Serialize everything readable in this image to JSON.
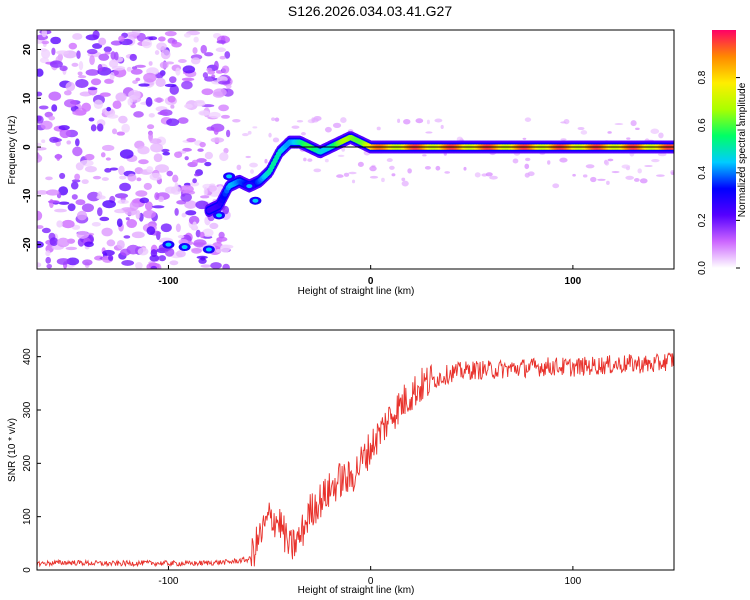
{
  "title": "S126.2026.034.03.41.G27",
  "chart_data": [
    {
      "type": "heatmap",
      "title": "S126.2026.034.03.41.G27",
      "xlabel": "Height of straight line (km)",
      "ylabel": "Frequency (Hz)",
      "xlim": [
        -165,
        150
      ],
      "ylim": [
        -25,
        24
      ],
      "xticks": [
        -100,
        0,
        100
      ],
      "yticks": [
        20,
        10,
        0,
        -10,
        -20
      ],
      "colorbar": {
        "label": "Normalized spectral amplitude",
        "range": [
          0,
          1
        ],
        "ticks": [
          0.0,
          0.2,
          0.4,
          0.6,
          0.8
        ],
        "colors": [
          "#ffffff",
          "#cc66ff",
          "#5500ff",
          "#0000ff",
          "#00ccff",
          "#00ff66",
          "#aaff00",
          "#ffee00",
          "#ff8800",
          "#ff0066"
        ]
      },
      "noise_region_x": [
        -165,
        -70
      ],
      "ridge_x": [
        -80,
        -75,
        -70,
        -65,
        -60,
        -55,
        -50,
        -45,
        -40,
        -35,
        -30,
        -25,
        -20,
        -15,
        -10,
        -5,
        0,
        10,
        20,
        40,
        60,
        80,
        100,
        120,
        150
      ],
      "ridge_freq": [
        -13,
        -12,
        -8,
        -7,
        -8,
        -7,
        -5,
        -1,
        1,
        1,
        0,
        -1,
        0,
        1,
        2,
        1,
        0,
        0,
        0,
        0,
        0,
        0,
        0,
        0,
        0
      ],
      "ridge_amplitude": [
        0.3,
        0.35,
        0.45,
        0.4,
        0.4,
        0.45,
        0.5,
        0.55,
        0.55,
        0.55,
        0.6,
        0.6,
        0.6,
        0.65,
        0.7,
        0.8,
        0.9,
        0.92,
        0.95,
        0.95,
        0.95,
        0.95,
        0.95,
        0.95,
        0.95
      ],
      "reference_line_freq": 0
    },
    {
      "type": "line",
      "xlabel": "Height of straight line (km)",
      "ylabel": "SNR (10 * v/v)",
      "xlim": [
        -165,
        150
      ],
      "ylim": [
        0,
        450
      ],
      "xticks": [
        -100,
        0,
        100
      ],
      "yticks": [
        0,
        100,
        200,
        300,
        400
      ],
      "series": [
        {
          "name": "SNR",
          "color": "#e8322c",
          "x": [
            -165,
            -150,
            -130,
            -110,
            -90,
            -70,
            -60,
            -55,
            -50,
            -45,
            -40,
            -35,
            -30,
            -25,
            -20,
            -15,
            -10,
            -5,
            0,
            5,
            10,
            15,
            20,
            25,
            30,
            40,
            50,
            60,
            70,
            80,
            90,
            100,
            110,
            120,
            130,
            140,
            150
          ],
          "y": [
            12,
            14,
            12,
            13,
            12,
            15,
            20,
            60,
            100,
            90,
            40,
            60,
            110,
            130,
            150,
            170,
            170,
            200,
            230,
            260,
            290,
            310,
            330,
            345,
            355,
            370,
            375,
            375,
            378,
            380,
            382,
            380,
            383,
            385,
            387,
            385,
            395
          ]
        }
      ]
    }
  ]
}
